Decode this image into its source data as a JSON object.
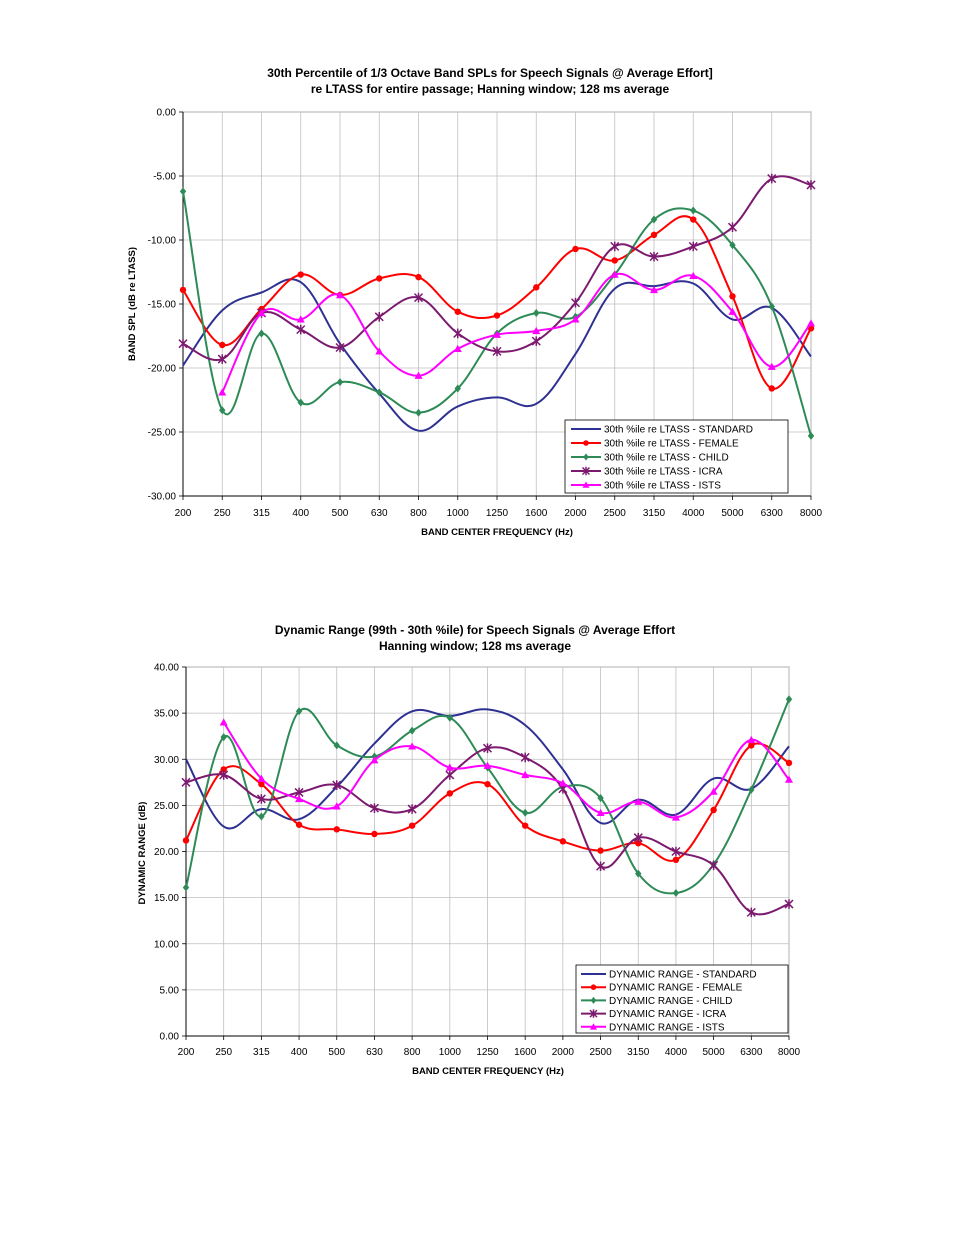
{
  "chart_data": [
    {
      "type": "line",
      "title": "30th Percentile of 1/3 Octave Band SPLs for Speech Signals @ Average Effort]",
      "subtitle": "re LTASS for entire passage; Hanning window; 128 ms average",
      "xlabel": "BAND CENTER FREQUENCY (Hz)",
      "ylabel": "BAND SPL (dB re LTASS)",
      "ylim": [
        -30,
        0
      ],
      "yticks": [
        0,
        -5,
        -10,
        -15,
        -20,
        -25,
        -30
      ],
      "ytick_labels": [
        "0.00",
        "-5.00",
        "-10.00",
        "-15.00",
        "-20.00",
        "-25.00",
        "-30.00"
      ],
      "grid": true,
      "legend_position": "bottom-right",
      "categories": [
        "200",
        "250",
        "315",
        "400",
        "500",
        "630",
        "800",
        "1000",
        "1250",
        "1600",
        "2000",
        "2500",
        "3150",
        "4000",
        "5000",
        "6300",
        "8000"
      ],
      "series": [
        {
          "name": "30th %ile re LTASS - STANDARD",
          "color": "#2e3192",
          "marker": "none",
          "values": [
            -19.8,
            -15.5,
            -14.1,
            -13.3,
            -18.1,
            -22.0,
            -24.9,
            -23.0,
            -22.3,
            -22.8,
            -18.9,
            -13.8,
            -13.6,
            -13.4,
            -16.2,
            -15.3,
            -19.1
          ]
        },
        {
          "name": "30th %ile re LTASS - FEMALE",
          "color": "#ff0000",
          "marker": "circle",
          "values": [
            -13.9,
            -18.2,
            -15.4,
            -12.7,
            -14.3,
            -13.0,
            -12.9,
            -15.6,
            -15.9,
            -13.7,
            -10.7,
            -11.6,
            -9.6,
            -8.4,
            -14.4,
            -21.6,
            -16.9
          ]
        },
        {
          "name": "30th %ile re LTASS - CHILD",
          "color": "#2e8b57",
          "marker": "diamond",
          "values": [
            -6.2,
            -23.3,
            -17.3,
            -22.7,
            -21.1,
            -21.9,
            -23.5,
            -21.6,
            -17.3,
            -15.7,
            -16.0,
            -12.7,
            -8.4,
            -7.7,
            -10.4,
            -15.2,
            -25.3
          ]
        },
        {
          "name": "30th %ile re LTASS - ICRA",
          "color": "#7b1a6f",
          "marker": "star",
          "values": [
            -18.1,
            -19.3,
            -15.7,
            -17.0,
            -18.4,
            -16.0,
            -14.5,
            -17.3,
            -18.7,
            -17.9,
            -14.9,
            -10.5,
            -11.3,
            -10.5,
            -9.0,
            -5.2,
            -5.7
          ]
        },
        {
          "name": "30th %ile re LTASS - ISTS",
          "color": "#ff00ff",
          "marker": "triangle",
          "values": [
            null,
            -21.9,
            -15.7,
            -16.2,
            -14.3,
            -18.7,
            -20.6,
            -18.5,
            -17.4,
            -17.1,
            -16.2,
            -12.7,
            -13.9,
            -12.8,
            -15.6,
            -19.9,
            -16.5
          ]
        }
      ]
    },
    {
      "type": "line",
      "title": "Dynamic Range (99th - 30th %ile) for Speech Signals @ Average Effort",
      "subtitle": "Hanning window; 128 ms average",
      "xlabel": "BAND CENTER FREQUENCY (Hz)",
      "ylabel": "DYNAMIC RANGE (dB)",
      "ylim": [
        0,
        40
      ],
      "yticks": [
        40,
        35,
        30,
        25,
        20,
        15,
        10,
        5,
        0
      ],
      "ytick_labels": [
        "40.00",
        "35.00",
        "30.00",
        "25.00",
        "20.00",
        "15.00",
        "10.00",
        "5.00",
        "0.00"
      ],
      "grid": true,
      "legend_position": "bottom-right",
      "categories": [
        "200",
        "250",
        "315",
        "400",
        "500",
        "630",
        "800",
        "1000",
        "1250",
        "1600",
        "2000",
        "2500",
        "3150",
        "4000",
        "5000",
        "6300",
        "8000"
      ],
      "series": [
        {
          "name": "DYNAMIC RANGE - STANDARD",
          "color": "#2e3192",
          "marker": "none",
          "values": [
            30.0,
            22.7,
            24.6,
            23.5,
            27.0,
            31.7,
            35.2,
            34.7,
            35.4,
            33.7,
            28.9,
            23.1,
            25.6,
            24.0,
            27.9,
            26.8,
            31.4
          ]
        },
        {
          "name": "DYNAMIC RANGE - FEMALE",
          "color": "#ff0000",
          "marker": "circle",
          "values": [
            21.2,
            28.9,
            27.3,
            22.9,
            22.4,
            21.9,
            22.8,
            26.3,
            27.3,
            22.8,
            21.1,
            20.1,
            20.9,
            19.1,
            24.5,
            31.5,
            29.6
          ]
        },
        {
          "name": "DYNAMIC RANGE - CHILD",
          "color": "#2e8b57",
          "marker": "diamond",
          "values": [
            16.1,
            32.4,
            23.8,
            35.2,
            31.5,
            30.3,
            33.1,
            34.5,
            29.1,
            24.2,
            27.0,
            25.8,
            17.6,
            15.5,
            18.6,
            26.7,
            36.5
          ]
        },
        {
          "name": "DYNAMIC RANGE - ICRA",
          "color": "#7b1a6f",
          "marker": "star",
          "values": [
            27.5,
            28.3,
            25.7,
            26.4,
            27.2,
            24.7,
            24.6,
            28.3,
            31.2,
            30.2,
            26.8,
            18.4,
            21.5,
            20.0,
            18.5,
            13.4,
            14.3
          ]
        },
        {
          "name": "DYNAMIC RANGE - ISTS",
          "color": "#ff00ff",
          "marker": "triangle",
          "values": [
            null,
            34.0,
            27.9,
            25.7,
            24.9,
            29.9,
            31.4,
            29.1,
            29.3,
            28.3,
            27.4,
            24.2,
            25.4,
            23.7,
            26.5,
            32.1,
            27.8
          ]
        }
      ]
    }
  ]
}
